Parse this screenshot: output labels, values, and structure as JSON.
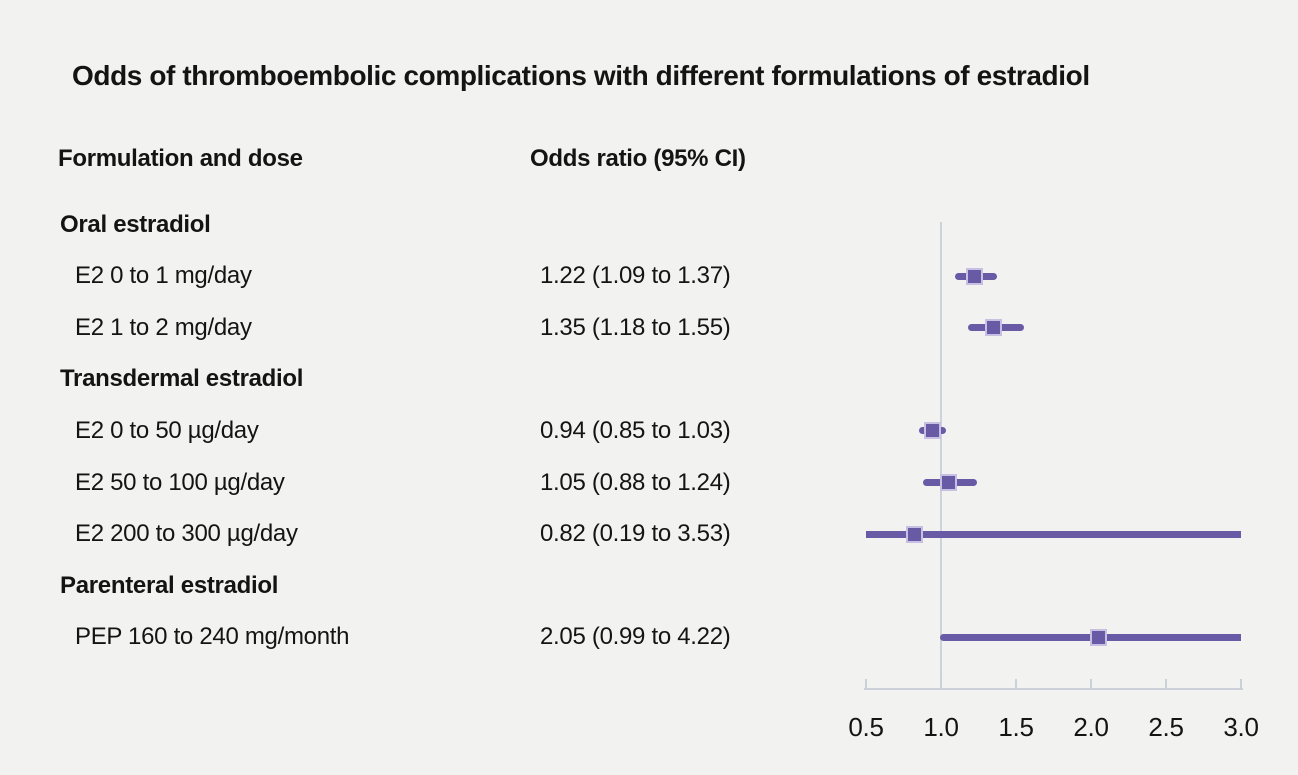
{
  "title": "Odds of thromboembolic complications with different formulations of estradiol",
  "columns": {
    "formulation": "Formulation and dose",
    "odds_ratio": "Odds ratio (95% CI)"
  },
  "chart_data": {
    "type": "forest",
    "title": "Odds of thromboembolic complications with different formulations of estradiol",
    "xlabel": "Odds ratio (95% CI)",
    "axis": {
      "min": 0.5,
      "max": 3.0,
      "reference": 1.0,
      "ticks": [
        {
          "value": 0.5,
          "label": "0.5"
        },
        {
          "value": 1.0,
          "label": "1.0"
        },
        {
          "value": 1.5,
          "label": "1.5"
        },
        {
          "value": 2.0,
          "label": "2.0"
        },
        {
          "value": 2.5,
          "label": "2.5"
        },
        {
          "value": 3.0,
          "label": "3.0"
        }
      ]
    },
    "groups": [
      {
        "label": "Oral estradiol",
        "items": [
          {
            "label": "E2 0 to 1 mg/day",
            "or_text": "1.22 (1.09 to 1.37)",
            "or": 1.22,
            "ci_low": 1.09,
            "ci_high": 1.37
          },
          {
            "label": "E2 1 to 2 mg/day",
            "or_text": "1.35 (1.18 to 1.55)",
            "or": 1.35,
            "ci_low": 1.18,
            "ci_high": 1.55
          }
        ]
      },
      {
        "label": "Transdermal estradiol",
        "items": [
          {
            "label": "E2 0 to 50 µg/day",
            "or_text": "0.94 (0.85 to 1.03)",
            "or": 0.94,
            "ci_low": 0.85,
            "ci_high": 1.03
          },
          {
            "label": "E2 50 to 100 µg/day",
            "or_text": "1.05 (0.88 to 1.24)",
            "or": 1.05,
            "ci_low": 0.88,
            "ci_high": 1.24
          },
          {
            "label": "E2 200 to 300 µg/day",
            "or_text": "0.82 (0.19 to 3.53)",
            "or": 0.82,
            "ci_low": 0.19,
            "ci_high": 3.53
          }
        ]
      },
      {
        "label": "Parenteral estradiol",
        "items": [
          {
            "label": "PEP 160 to 240 mg/month",
            "or_text": "2.05 (0.99 to 4.22)",
            "or": 2.05,
            "ci_low": 0.99,
            "ci_high": 4.22
          }
        ]
      }
    ],
    "colors": {
      "background": "#f2f2f1",
      "text": "#141414",
      "marker_fill": "#685aa4",
      "marker_border": "#c7c0e2",
      "ci_line": "#685aa4",
      "axis": "#ccd1d9",
      "reference_line": "#ccd3dc"
    }
  }
}
